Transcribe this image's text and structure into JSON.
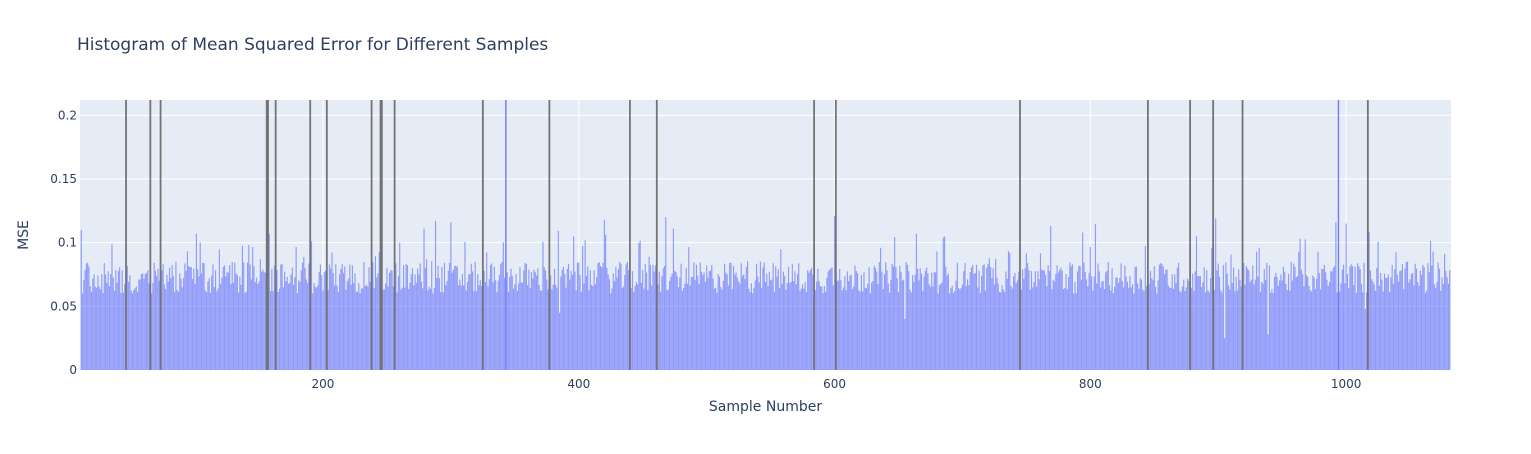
{
  "chart_data": {
    "type": "bar",
    "title": "Histogram of Mean Squared Error for Different Samples",
    "xlabel": "Sample Number",
    "ylabel": "MSE",
    "xlim": [
      10,
      1082
    ],
    "ylim": [
      0,
      0.212
    ],
    "x_ticks": [
      200,
      400,
      600,
      800,
      1000
    ],
    "x_tick_labels": [
      "200",
      "400",
      "600",
      "800",
      "1000"
    ],
    "y_ticks": [
      0,
      0.05,
      0.1,
      0.15,
      0.2
    ],
    "y_tick_labels": [
      "0",
      "0.05",
      "0.1",
      "0.15",
      "0.2"
    ],
    "grid": true,
    "legend": "none",
    "bar_color": "#636efa",
    "bar_opacity": 0.65,
    "plot_background": "#e5ecf6",
    "x_start": 11,
    "x_end": 1081,
    "typical_range": [
      0.06,
      0.085
    ],
    "bars_above_ylim_dark": [
      46,
      65,
      73,
      156,
      157,
      163,
      190,
      203,
      238,
      245,
      246,
      256,
      325,
      377,
      440,
      461,
      584,
      601,
      745,
      845,
      878,
      896,
      919,
      1017
    ],
    "bars_above_ylim_blue": [
      343,
      994
    ],
    "notable_values": [
      {
        "x": 11,
        "y": 0.11
      },
      {
        "x": 101,
        "y": 0.107
      },
      {
        "x": 158,
        "y": 0.107
      },
      {
        "x": 279,
        "y": 0.111
      },
      {
        "x": 288,
        "y": 0.117
      },
      {
        "x": 300,
        "y": 0.116
      },
      {
        "x": 385,
        "y": 0.115
      },
      {
        "x": 420,
        "y": 0.118
      },
      {
        "x": 468,
        "y": 0.12
      },
      {
        "x": 600,
        "y": 0.121
      },
      {
        "x": 794,
        "y": 0.108
      },
      {
        "x": 878,
        "y": 0.112
      },
      {
        "x": 883,
        "y": 0.105
      },
      {
        "x": 898,
        "y": 0.119
      },
      {
        "x": 992,
        "y": 0.116
      },
      {
        "x": 1000,
        "y": 0.115
      }
    ],
    "notable_low_values": [
      {
        "x": 385,
        "y": 0.045
      },
      {
        "x": 655,
        "y": 0.04
      },
      {
        "x": 905,
        "y": 0.025
      },
      {
        "x": 939,
        "y": 0.028
      },
      {
        "x": 1015,
        "y": 0.048
      }
    ]
  }
}
